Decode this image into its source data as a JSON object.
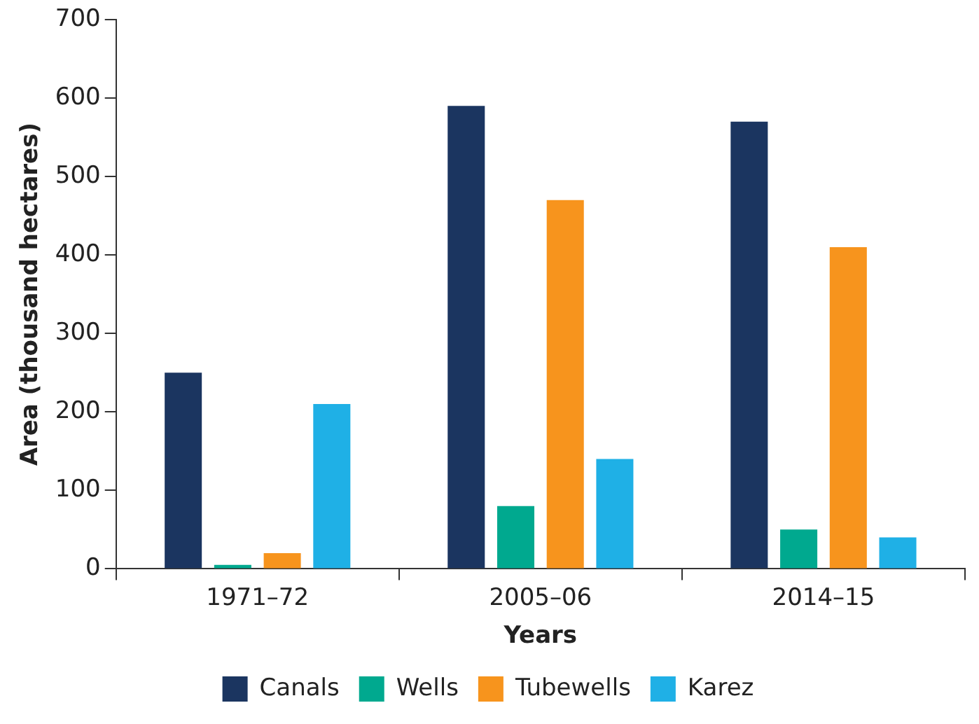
{
  "chart_data": {
    "type": "bar",
    "xlabel": "Years",
    "ylabel": "Area (thousand hectares)",
    "categories": [
      "1971–72",
      "2005–06",
      "2014–15"
    ],
    "series": [
      {
        "name": "Canals",
        "color": "#1b3560",
        "values": [
          250,
          590,
          570
        ]
      },
      {
        "name": "Wells",
        "color": "#00a98f",
        "values": [
          5,
          80,
          50
        ]
      },
      {
        "name": "Tubewells",
        "color": "#f7941d",
        "values": [
          20,
          470,
          410
        ]
      },
      {
        "name": "Karez",
        "color": "#1fb0e6",
        "values": [
          210,
          140,
          40
        ]
      }
    ],
    "ylim": [
      0,
      700
    ],
    "yticks": [
      0,
      100,
      200,
      300,
      400,
      500,
      600,
      700
    ],
    "grid": false,
    "legend": "bottom"
  }
}
